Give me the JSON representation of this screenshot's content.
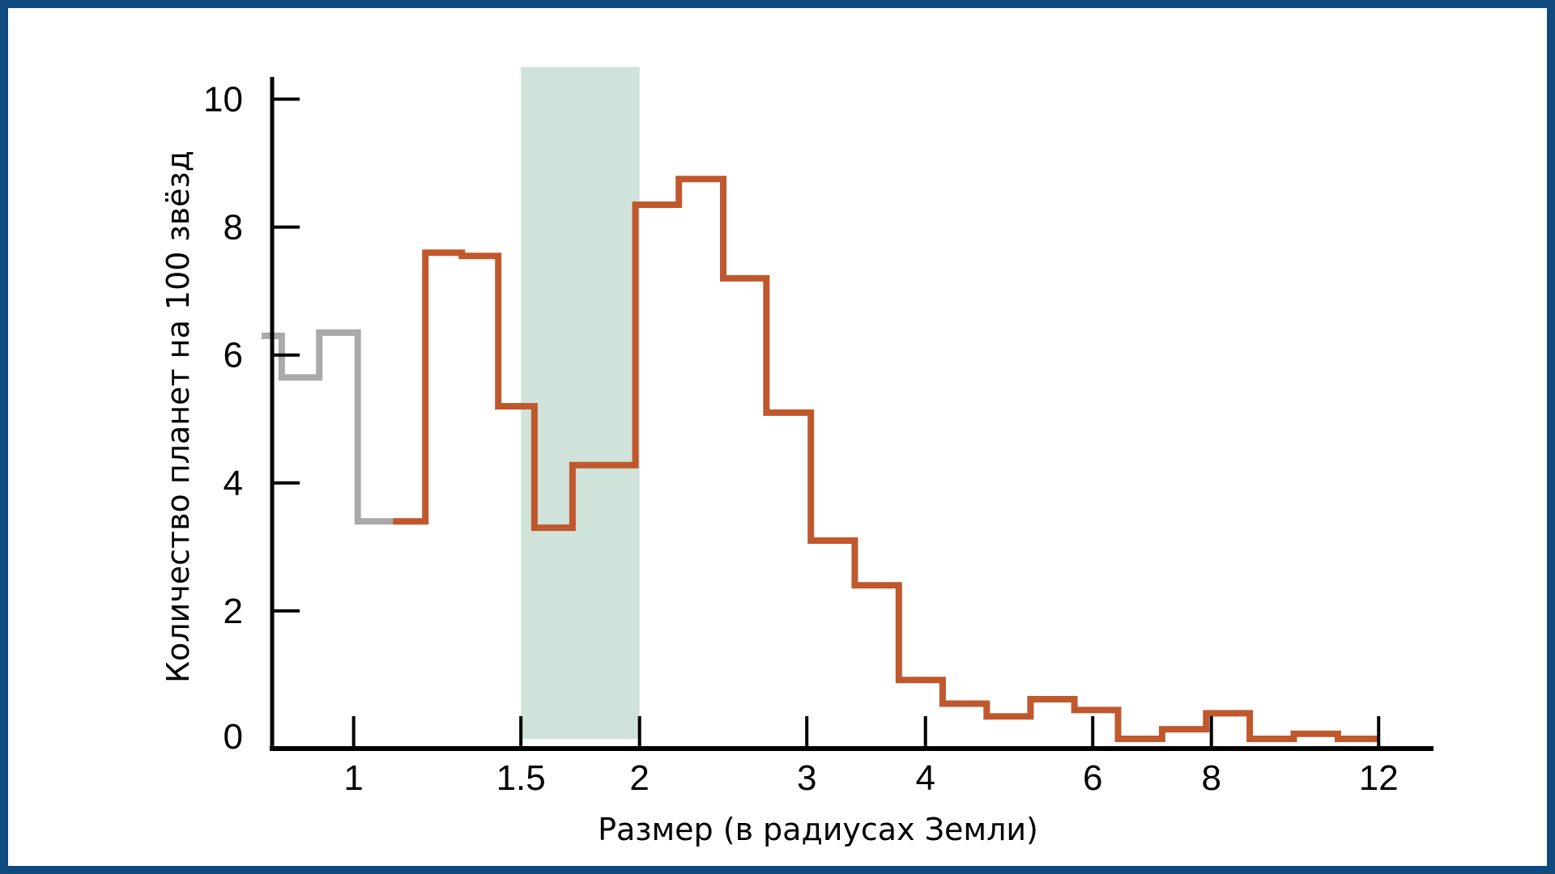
{
  "chart_data": {
    "type": "step",
    "xlabel": "Размер (в радиусах Земли)",
    "ylabel": "Количество планет на 100 звёзд",
    "x_scale": "log",
    "xlim": [
      0.8,
      13
    ],
    "ylim": [
      0,
      10.5
    ],
    "x_ticks": [
      {
        "value": 1,
        "label": "1"
      },
      {
        "value": 1.5,
        "label": "1.5"
      },
      {
        "value": 2,
        "label": "2"
      },
      {
        "value": 3,
        "label": "3"
      },
      {
        "value": 4,
        "label": "4"
      },
      {
        "value": 6,
        "label": "6"
      },
      {
        "value": 8,
        "label": "8"
      },
      {
        "value": 12,
        "label": "12"
      }
    ],
    "y_ticks": [
      {
        "value": 0,
        "label": "0"
      },
      {
        "value": 2,
        "label": "2"
      },
      {
        "value": 4,
        "label": "4"
      },
      {
        "value": 6,
        "label": "6"
      },
      {
        "value": 8,
        "label": "8"
      },
      {
        "value": 10,
        "label": "10"
      }
    ],
    "highlight_band": {
      "x_from": 1.5,
      "x_to": 2.0,
      "color": "#cfe3da"
    },
    "series": [
      {
        "color": "#aaaaaa",
        "bins": [
          {
            "x0": 0.8,
            "x1": 0.84,
            "y": 6.3
          },
          {
            "x0": 0.84,
            "x1": 0.92,
            "y": 5.65
          },
          {
            "x0": 0.92,
            "x1": 1.01,
            "y": 6.35
          },
          {
            "x0": 1.01,
            "x1": 1.1,
            "y": 3.4
          }
        ]
      },
      {
        "color": "#c0582e",
        "bins": [
          {
            "x0": 1.1,
            "x1": 1.19,
            "y": 3.4
          },
          {
            "x0": 1.19,
            "x1": 1.3,
            "y": 7.6
          },
          {
            "x0": 1.3,
            "x1": 1.42,
            "y": 7.55
          },
          {
            "x0": 1.42,
            "x1": 1.55,
            "y": 5.2
          },
          {
            "x0": 1.55,
            "x1": 1.7,
            "y": 3.3
          },
          {
            "x0": 1.7,
            "x1": 1.98,
            "y": 4.28
          },
          {
            "x0": 1.98,
            "x1": 2.2,
            "y": 8.35
          },
          {
            "x0": 2.2,
            "x1": 2.45,
            "y": 8.75
          },
          {
            "x0": 2.45,
            "x1": 2.72,
            "y": 7.2
          },
          {
            "x0": 2.72,
            "x1": 3.03,
            "y": 5.1
          },
          {
            "x0": 3.03,
            "x1": 3.37,
            "y": 3.1
          },
          {
            "x0": 3.37,
            "x1": 3.75,
            "y": 2.4
          },
          {
            "x0": 3.75,
            "x1": 4.17,
            "y": 0.92
          },
          {
            "x0": 4.17,
            "x1": 4.64,
            "y": 0.55
          },
          {
            "x0": 4.64,
            "x1": 5.16,
            "y": 0.35
          },
          {
            "x0": 5.16,
            "x1": 5.74,
            "y": 0.62
          },
          {
            "x0": 5.74,
            "x1": 6.38,
            "y": 0.45
          },
          {
            "x0": 6.38,
            "x1": 7.1,
            "y": 0.0
          },
          {
            "x0": 7.1,
            "x1": 7.9,
            "y": 0.15
          },
          {
            "x0": 7.9,
            "x1": 8.78,
            "y": 0.4
          },
          {
            "x0": 8.78,
            "x1": 9.77,
            "y": 0.0
          },
          {
            "x0": 9.77,
            "x1": 10.87,
            "y": 0.08
          },
          {
            "x0": 10.87,
            "x1": 12.0,
            "y": 0.0
          }
        ]
      }
    ]
  }
}
